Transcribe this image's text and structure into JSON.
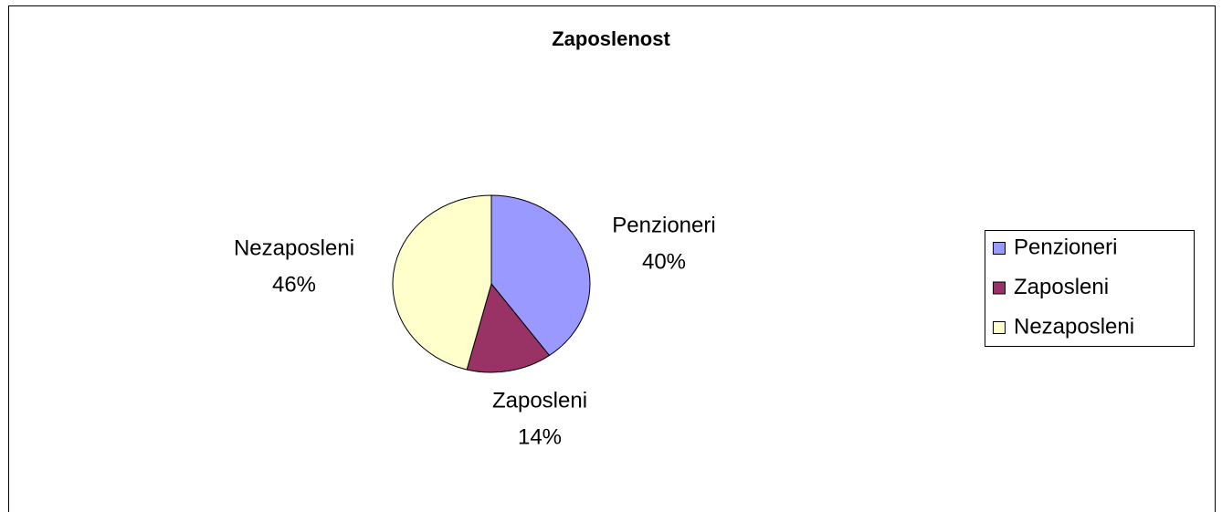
{
  "chart_data": {
    "type": "pie",
    "title": "Zaposlenost",
    "categories": [
      "Penzioneri",
      "Zaposleni",
      "Nezaposleni"
    ],
    "values": [
      40,
      14,
      46
    ],
    "value_labels": [
      "40%",
      "14%",
      "46%"
    ],
    "colors": [
      "#9999ff",
      "#993366",
      "#ffffcc"
    ],
    "legend": "right"
  }
}
